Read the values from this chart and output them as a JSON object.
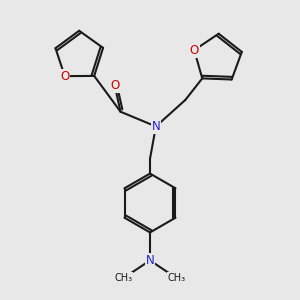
{
  "background_color": "#e8e8e8",
  "bond_color": "#1a1a1a",
  "oxygen_color": "#cc0000",
  "nitrogen_color": "#2222cc",
  "bond_width": 1.5,
  "font_size_atom": 8.5,
  "figsize": [
    3.0,
    3.0
  ],
  "dpi": 100,
  "xlim": [
    0,
    10
  ],
  "ylim": [
    0,
    10
  ]
}
